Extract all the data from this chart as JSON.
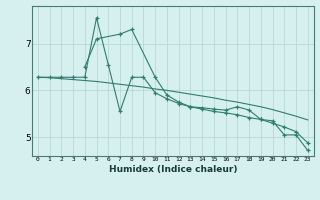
{
  "xlabel": "Humidex (Indice chaleur)",
  "background_color": "#d6f0ef",
  "grid_color": "#b8d8d5",
  "line_color": "#2e7d70",
  "xlim": [
    -0.5,
    23.5
  ],
  "ylim": [
    4.6,
    7.8
  ],
  "yticks": [
    5,
    6,
    7
  ],
  "xticks": [
    0,
    1,
    2,
    3,
    4,
    5,
    6,
    7,
    8,
    9,
    10,
    11,
    12,
    13,
    14,
    15,
    16,
    17,
    18,
    19,
    20,
    21,
    22,
    23
  ],
  "series1_x": [
    0,
    1,
    2,
    3,
    4,
    5,
    6,
    7,
    8,
    9,
    10,
    11,
    12,
    13,
    14,
    15,
    16,
    17,
    18,
    19,
    20,
    21,
    22,
    23
  ],
  "series1_y": [
    6.28,
    6.28,
    6.28,
    6.28,
    6.28,
    7.55,
    6.55,
    5.55,
    6.28,
    6.28,
    5.95,
    5.82,
    5.72,
    5.65,
    5.63,
    5.6,
    5.58,
    5.65,
    5.58,
    5.38,
    5.35,
    5.05,
    5.05,
    4.72
  ],
  "series2_x": [
    4,
    5,
    7,
    8,
    10,
    11,
    12,
    13,
    14,
    15,
    16,
    17,
    18,
    19,
    20,
    21,
    22,
    23
  ],
  "series2_y": [
    6.5,
    7.1,
    7.2,
    7.3,
    6.28,
    5.9,
    5.75,
    5.65,
    5.6,
    5.55,
    5.52,
    5.48,
    5.42,
    5.38,
    5.3,
    5.22,
    5.12,
    4.88
  ],
  "series3_x": [
    0,
    1,
    2,
    3,
    4,
    5,
    6,
    7,
    8,
    9,
    10,
    11,
    12,
    13,
    14,
    15,
    16,
    17,
    18,
    19,
    20,
    21,
    22,
    23
  ],
  "series3_y": [
    6.28,
    6.27,
    6.25,
    6.23,
    6.21,
    6.19,
    6.16,
    6.13,
    6.1,
    6.07,
    6.03,
    6.0,
    5.96,
    5.92,
    5.88,
    5.84,
    5.79,
    5.75,
    5.7,
    5.65,
    5.59,
    5.52,
    5.45,
    5.37
  ]
}
